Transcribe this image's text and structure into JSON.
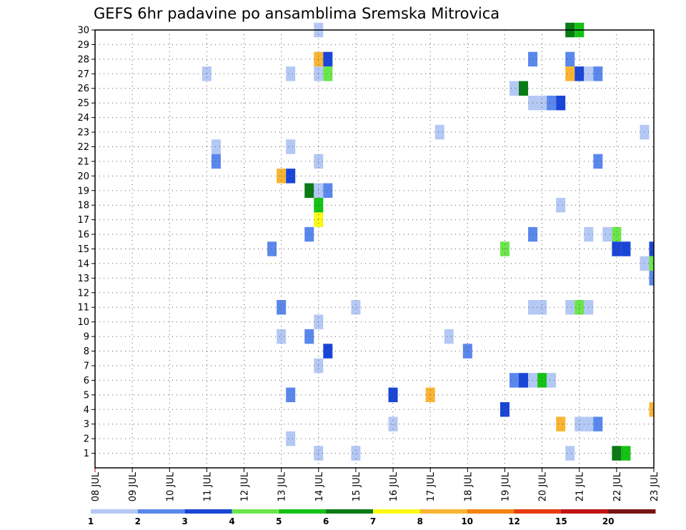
{
  "chart_data": {
    "type": "heatmap",
    "title": "GEFS 6hr padavine po ansamblima Sremska Mitrovica",
    "xlabel": "",
    "ylabel": "",
    "x_unit": "days (6-hour steps)",
    "xlim": [
      0,
      15
    ],
    "ylim": [
      0,
      30
    ],
    "x_tick_labels": [
      "08 JUL",
      "09 JUL",
      "10 JUL",
      "11 JUL",
      "12 JUL",
      "13 JUL",
      "14 JUL",
      "15 JUL",
      "16 JUL",
      "17 JUL",
      "18 JUL",
      "19 JUL",
      "20 JUL",
      "21 JUL",
      "22 JUL",
      "23 JUL"
    ],
    "y_tick_labels": [
      "1",
      "2",
      "3",
      "4",
      "5",
      "6",
      "7",
      "8",
      "9",
      "10",
      "11",
      "12",
      "13",
      "14",
      "15",
      "16",
      "17",
      "18",
      "19",
      "20",
      "21",
      "22",
      "23",
      "24",
      "25",
      "26",
      "27",
      "28",
      "29",
      "30"
    ],
    "grid": true,
    "colorbar": {
      "labels": [
        "1",
        "2",
        "3",
        "4",
        "5",
        "6",
        "7",
        "8",
        "10",
        "12",
        "15",
        "20"
      ],
      "colors": [
        "#b4c8f5",
        "#5a87ec",
        "#1946d6",
        "#6ae64a",
        "#14c314",
        "#0a7a14",
        "#fafa14",
        "#fab432",
        "#f5820f",
        "#e63c0f",
        "#be1414",
        "#781414"
      ]
    },
    "cells": [
      {
        "x": 6,
        "y": 30,
        "v": 1.7
      },
      {
        "x": 12.75,
        "y": 30,
        "v": 6.5
      },
      {
        "x": 13,
        "y": 30,
        "v": 5.5
      },
      {
        "x": 6,
        "y": 28,
        "v": 8.5
      },
      {
        "x": 6.25,
        "y": 28,
        "v": 3.5
      },
      {
        "x": 11.75,
        "y": 28,
        "v": 2.5
      },
      {
        "x": 12.75,
        "y": 28,
        "v": 2.5
      },
      {
        "x": 3,
        "y": 27,
        "v": 1.5
      },
      {
        "x": 5.25,
        "y": 27,
        "v": 1.5
      },
      {
        "x": 6,
        "y": 27,
        "v": 1.5
      },
      {
        "x": 6.25,
        "y": 27,
        "v": 4.5
      },
      {
        "x": 12.75,
        "y": 27,
        "v": 8.5
      },
      {
        "x": 13,
        "y": 27,
        "v": 3.5
      },
      {
        "x": 13.25,
        "y": 27,
        "v": 1.5
      },
      {
        "x": 13.5,
        "y": 27,
        "v": 2.5
      },
      {
        "x": 11.25,
        "y": 26,
        "v": 1.5
      },
      {
        "x": 11.5,
        "y": 26,
        "v": 6.5
      },
      {
        "x": 11.75,
        "y": 25,
        "v": 1.5
      },
      {
        "x": 12,
        "y": 25,
        "v": 1.5
      },
      {
        "x": 12.25,
        "y": 25,
        "v": 2.5
      },
      {
        "x": 12.5,
        "y": 25,
        "v": 3.5
      },
      {
        "x": 9.25,
        "y": 23,
        "v": 1.5
      },
      {
        "x": 14.75,
        "y": 23,
        "v": 1.5
      },
      {
        "x": 3.25,
        "y": 22,
        "v": 1.5
      },
      {
        "x": 5.25,
        "y": 22,
        "v": 1.5
      },
      {
        "x": 3.25,
        "y": 21,
        "v": 2.5
      },
      {
        "x": 6,
        "y": 21,
        "v": 1.5
      },
      {
        "x": 13.5,
        "y": 21,
        "v": 2.5
      },
      {
        "x": 5,
        "y": 20,
        "v": 8.5
      },
      {
        "x": 5.25,
        "y": 20,
        "v": 3.5
      },
      {
        "x": 5.75,
        "y": 19,
        "v": 6.5
      },
      {
        "x": 6,
        "y": 19,
        "v": 1.5
      },
      {
        "x": 6.25,
        "y": 19,
        "v": 2.5
      },
      {
        "x": 6,
        "y": 18,
        "v": 5.5
      },
      {
        "x": 12.5,
        "y": 18,
        "v": 1.5
      },
      {
        "x": 6,
        "y": 17,
        "v": 7.5
      },
      {
        "x": 5.75,
        "y": 16,
        "v": 2.5
      },
      {
        "x": 11.75,
        "y": 16,
        "v": 2.5
      },
      {
        "x": 13.25,
        "y": 16,
        "v": 1.5
      },
      {
        "x": 13.75,
        "y": 16,
        "v": 1.5
      },
      {
        "x": 14,
        "y": 16,
        "v": 4.5
      },
      {
        "x": 4.75,
        "y": 15,
        "v": 2.5
      },
      {
        "x": 11,
        "y": 15,
        "v": 4.5
      },
      {
        "x": 14,
        "y": 15,
        "v": 3.5
      },
      {
        "x": 14.25,
        "y": 15,
        "v": 3.5
      },
      {
        "x": 15,
        "y": 15,
        "v": 3.5
      },
      {
        "x": 14.75,
        "y": 14,
        "v": 1.5
      },
      {
        "x": 15,
        "y": 14,
        "v": 4.5
      },
      {
        "x": 15,
        "y": 13,
        "v": 2.5
      },
      {
        "x": 5,
        "y": 11,
        "v": 2.5
      },
      {
        "x": 7,
        "y": 11,
        "v": 1.5
      },
      {
        "x": 11.75,
        "y": 11,
        "v": 1.5
      },
      {
        "x": 12,
        "y": 11,
        "v": 1.5
      },
      {
        "x": 12.75,
        "y": 11,
        "v": 1.5
      },
      {
        "x": 13,
        "y": 11,
        "v": 4.5
      },
      {
        "x": 13.25,
        "y": 11,
        "v": 1.5
      },
      {
        "x": 6,
        "y": 10,
        "v": 1.5
      },
      {
        "x": 5,
        "y": 9,
        "v": 1.5
      },
      {
        "x": 5.75,
        "y": 9,
        "v": 2.5
      },
      {
        "x": 9.5,
        "y": 9,
        "v": 1.5
      },
      {
        "x": 6.25,
        "y": 8,
        "v": 3.5
      },
      {
        "x": 10,
        "y": 8,
        "v": 2.5
      },
      {
        "x": 6,
        "y": 7,
        "v": 1.5
      },
      {
        "x": 11.25,
        "y": 6,
        "v": 2.5
      },
      {
        "x": 11.5,
        "y": 6,
        "v": 3.5
      },
      {
        "x": 11.75,
        "y": 6,
        "v": 1.5
      },
      {
        "x": 12,
        "y": 6,
        "v": 5.5
      },
      {
        "x": 12.25,
        "y": 6,
        "v": 1.5
      },
      {
        "x": 5.25,
        "y": 5,
        "v": 2.5
      },
      {
        "x": 8,
        "y": 5,
        "v": 3.5
      },
      {
        "x": 9,
        "y": 5,
        "v": 8.5
      },
      {
        "x": 11,
        "y": 4,
        "v": 3.5
      },
      {
        "x": 15,
        "y": 4,
        "v": 8.5
      },
      {
        "x": 8,
        "y": 3,
        "v": 1.5
      },
      {
        "x": 12.5,
        "y": 3,
        "v": 8.5
      },
      {
        "x": 13,
        "y": 3,
        "v": 1.5
      },
      {
        "x": 13.25,
        "y": 3,
        "v": 1.5
      },
      {
        "x": 13.5,
        "y": 3,
        "v": 2.5
      },
      {
        "x": 5.25,
        "y": 2,
        "v": 1.5
      },
      {
        "x": 6,
        "y": 1,
        "v": 1.5
      },
      {
        "x": 7,
        "y": 1,
        "v": 1.5
      },
      {
        "x": 12.75,
        "y": 1,
        "v": 1.5
      },
      {
        "x": 14,
        "y": 1,
        "v": 6.5
      },
      {
        "x": 14.25,
        "y": 1,
        "v": 5.5
      }
    ]
  }
}
